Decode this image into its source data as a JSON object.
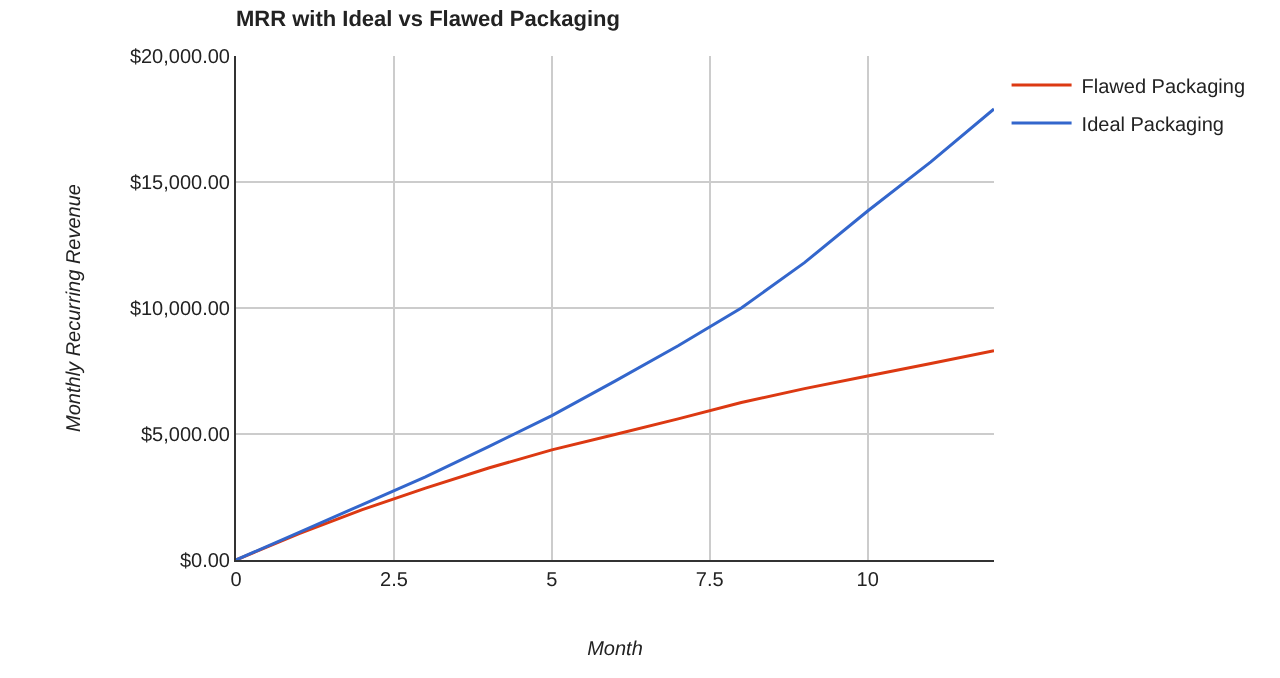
{
  "chart_data": {
    "type": "line",
    "title": "MRR with Ideal vs Flawed Packaging",
    "xlabel": "Month",
    "ylabel": "Monthly Recurring Revenue",
    "x": [
      0,
      1,
      2,
      3,
      4,
      5,
      6,
      7,
      8,
      9,
      10,
      11,
      12
    ],
    "series": [
      {
        "name": "Flawed Packaging",
        "color": "#dc3912",
        "values": [
          0,
          1050,
          2000,
          2850,
          3650,
          4370,
          4980,
          5600,
          6250,
          6800,
          7300,
          7800,
          8300
        ]
      },
      {
        "name": "Ideal Packaging",
        "color": "#3366cc",
        "values": [
          0,
          1100,
          2200,
          3300,
          4500,
          5730,
          7100,
          8500,
          10000,
          11800,
          13850,
          15800,
          17900
        ]
      }
    ],
    "xlim": [
      0,
      12
    ],
    "xticks": [
      0,
      2.5,
      5,
      7.5,
      10
    ],
    "ylim": [
      0,
      20000
    ],
    "yticks": [
      {
        "value": 0,
        "label": "$0.00"
      },
      {
        "value": 5000,
        "label": "$5,000.00"
      },
      {
        "value": 10000,
        "label": "$10,000.00"
      },
      {
        "value": 15000,
        "label": "$15,000.00"
      },
      {
        "value": 20000,
        "label": "$20,000.00"
      }
    ],
    "grid": true,
    "legend": "top right",
    "marker": "none",
    "line_style": "solid"
  }
}
